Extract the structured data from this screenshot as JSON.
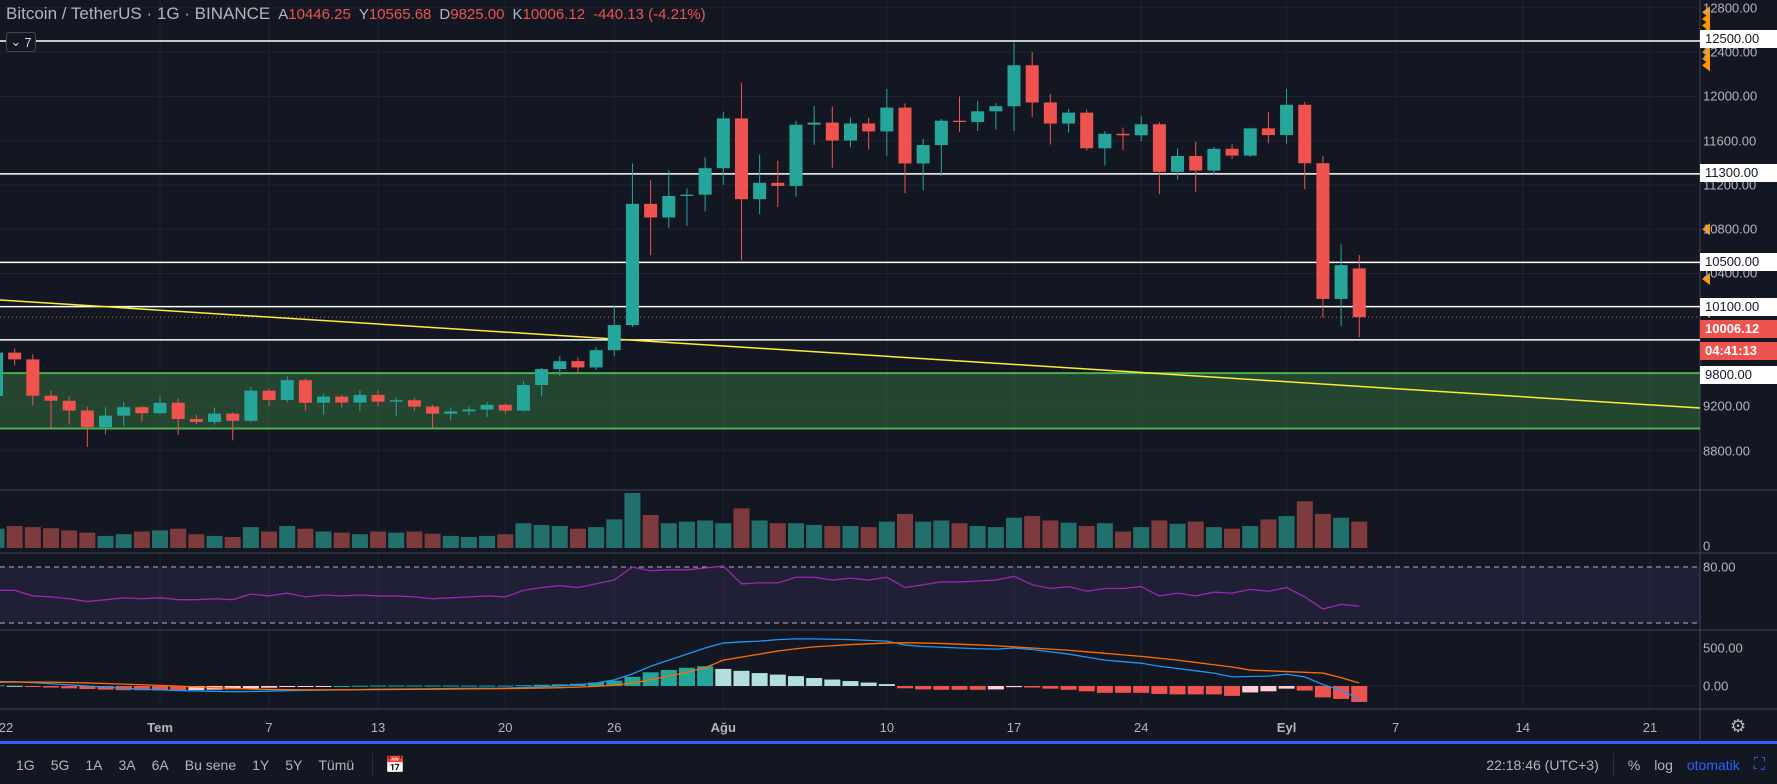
{
  "header": {
    "symbol": "Bitcoin / TetherUS · 1G · BINANCE",
    "open_label": "A",
    "open": "10446.25",
    "high_label": "Y",
    "high": "10565.68",
    "low_label": "D",
    "low": "9825.00",
    "close_label": "K",
    "close": "10006.12",
    "change": "-440.13 (-4.21%)",
    "legend_count": "7"
  },
  "colors": {
    "bg": "#131722",
    "up": "#26a69a",
    "down": "#ef5350",
    "rsi": "#9c27b0",
    "macd": "#2196f3",
    "signal": "#ff6d00",
    "zone": "#4caf50",
    "trend": "#ffeb3b"
  },
  "price_axis": {
    "ticks": [
      "12800.00",
      "12400.00",
      "12000.00",
      "11600.00",
      "11200.00",
      "10800.00",
      "10400.00",
      "9200.00",
      "8800.00"
    ],
    "tick_values": [
      12800,
      12400,
      12000,
      11600,
      11200,
      10800,
      10400,
      9200,
      8800
    ],
    "levels": [
      "12500.00",
      "11300.00",
      "10500.00",
      "10100.00",
      "9800.00"
    ],
    "level_values": [
      12500,
      11300,
      10500,
      10100,
      9800
    ],
    "last_price": "10006.12",
    "countdown": "04:41:13",
    "alert_values": [
      12760,
      12700,
      12640,
      12580,
      12520,
      12460,
      12400,
      12340,
      12280,
      11300,
      10800,
      10350,
      10050
    ]
  },
  "zone": {
    "from": 9000,
    "to": 9500
  },
  "volume_axis": {
    "zero": "0"
  },
  "rsi_axis": {
    "upper": "80.00",
    "bands": [
      80,
      20
    ]
  },
  "macd_axis": {
    "t500": "500.00",
    "t0": "0.00"
  },
  "time_axis": [
    {
      "label": "22",
      "day": 0,
      "bold": false
    },
    {
      "label": "Tem",
      "day": 9,
      "bold": true
    },
    {
      "label": "7",
      "day": 15,
      "bold": false
    },
    {
      "label": "13",
      "day": 21,
      "bold": false
    },
    {
      "label": "20",
      "day": 28,
      "bold": false
    },
    {
      "label": "26",
      "day": 34,
      "bold": false
    },
    {
      "label": "Ağu",
      "day": 40,
      "bold": true
    },
    {
      "label": "10",
      "day": 49,
      "bold": false
    },
    {
      "label": "17",
      "day": 56,
      "bold": false
    },
    {
      "label": "24",
      "day": 63,
      "bold": false
    },
    {
      "label": "Eyl",
      "day": 71,
      "bold": true
    },
    {
      "label": "7",
      "day": 77,
      "bold": false
    },
    {
      "label": "14",
      "day": 84,
      "bold": false
    },
    {
      "label": "21",
      "day": 91,
      "bold": false
    }
  ],
  "toolbar": {
    "ranges": [
      "1G",
      "5G",
      "1A",
      "3A",
      "6A",
      "Bu sene",
      "1Y",
      "5Y",
      "Tümü"
    ],
    "time": "22:18:46 (UTC+3)",
    "percent": "%",
    "log": "log",
    "auto": "otomatik"
  },
  "chart_data": {
    "type": "candlestick",
    "title": "Bitcoin / TetherUS · 1G · BINANCE",
    "first_date": "2020-06-22",
    "last_date": "2020-09-05",
    "ylim": [
      8600,
      12900
    ],
    "ohlc": [
      [
        9294,
        9780,
        9282,
        9685
      ],
      [
        9685,
        9722,
        9570,
        9624
      ],
      [
        9624,
        9670,
        9208,
        9296
      ],
      [
        9296,
        9340,
        9005,
        9250
      ],
      [
        9250,
        9290,
        9036,
        9162
      ],
      [
        9162,
        9196,
        8833,
        9012
      ],
      [
        9012,
        9191,
        8948,
        9116
      ],
      [
        9116,
        9236,
        9024,
        9192
      ],
      [
        9192,
        9200,
        9064,
        9138
      ],
      [
        9138,
        9292,
        9126,
        9232
      ],
      [
        9232,
        9272,
        8940,
        9086
      ],
      [
        9086,
        9125,
        9040,
        9059
      ],
      [
        9059,
        9189,
        9035,
        9134
      ],
      [
        9134,
        9145,
        8893,
        9069
      ],
      [
        9069,
        9375,
        9056,
        9342
      ],
      [
        9342,
        9361,
        9203,
        9257
      ],
      [
        9257,
        9470,
        9237,
        9436
      ],
      [
        9436,
        9450,
        9160,
        9232
      ],
      [
        9232,
        9317,
        9125,
        9288
      ],
      [
        9288,
        9305,
        9190,
        9234
      ],
      [
        9234,
        9345,
        9157,
        9303
      ],
      [
        9303,
        9343,
        9200,
        9242
      ],
      [
        9242,
        9279,
        9113,
        9255
      ],
      [
        9255,
        9275,
        9160,
        9197
      ],
      [
        9197,
        9216,
        9005,
        9133
      ],
      [
        9133,
        9187,
        9074,
        9154
      ],
      [
        9154,
        9196,
        9118,
        9171
      ],
      [
        9171,
        9240,
        9105,
        9214
      ],
      [
        9214,
        9224,
        9132,
        9161
      ],
      [
        9161,
        9430,
        9152,
        9392
      ],
      [
        9392,
        9549,
        9290,
        9536
      ],
      [
        9536,
        9655,
        9475,
        9608
      ],
      [
        9608,
        9642,
        9500,
        9551
      ],
      [
        9551,
        9735,
        9529,
        9707
      ],
      [
        9707,
        10111,
        9651,
        9934
      ],
      [
        9934,
        11394,
        9917,
        11029
      ],
      [
        11029,
        11242,
        10565,
        10906
      ],
      [
        10906,
        11335,
        10812,
        11100
      ],
      [
        11100,
        11169,
        10831,
        11112
      ],
      [
        11112,
        11450,
        10960,
        11351
      ],
      [
        11351,
        11861,
        11200,
        11801
      ],
      [
        11801,
        12123,
        10518,
        11071
      ],
      [
        11071,
        11474,
        10936,
        11219
      ],
      [
        11219,
        11418,
        11000,
        11191
      ],
      [
        11191,
        11780,
        11093,
        11744
      ],
      [
        11744,
        11912,
        11562,
        11763
      ],
      [
        11763,
        11909,
        11356,
        11601
      ],
      [
        11601,
        11808,
        11540,
        11755
      ],
      [
        11755,
        11806,
        11520,
        11683
      ],
      [
        11683,
        12067,
        11461,
        11898
      ],
      [
        11898,
        11935,
        11125,
        11394
      ],
      [
        11394,
        11617,
        11150,
        11560
      ],
      [
        11560,
        11797,
        11280,
        11780
      ],
      [
        11780,
        12000,
        11680,
        11768
      ],
      [
        11768,
        11960,
        11686,
        11865
      ],
      [
        11865,
        11940,
        11700,
        11911
      ],
      [
        11911,
        12486,
        11687,
        12281
      ],
      [
        12281,
        12400,
        11813,
        11945
      ],
      [
        11945,
        12020,
        11565,
        11754
      ],
      [
        11754,
        11887,
        11672,
        11853
      ],
      [
        11853,
        11880,
        11510,
        11531
      ],
      [
        11531,
        11686,
        11376,
        11662
      ],
      [
        11662,
        11718,
        11514,
        11648
      ],
      [
        11648,
        11824,
        11595,
        11748
      ],
      [
        11748,
        11767,
        11117,
        11318
      ],
      [
        11318,
        11530,
        11250,
        11461
      ],
      [
        11461,
        11590,
        11135,
        11330
      ],
      [
        11330,
        11545,
        11288,
        11526
      ],
      [
        11526,
        11570,
        11433,
        11465
      ],
      [
        11465,
        11718,
        11455,
        11711
      ],
      [
        11711,
        11860,
        11578,
        11650
      ],
      [
        11650,
        12067,
        11570,
        11924
      ],
      [
        11924,
        11950,
        11160,
        11396
      ],
      [
        11396,
        11462,
        10000,
        10170
      ],
      [
        10170,
        10663,
        9925,
        10476
      ],
      [
        10446,
        10566,
        9825,
        10006
      ]
    ],
    "volume_relative": [
      35,
      40,
      38,
      36,
      32,
      28,
      22,
      25,
      30,
      32,
      35,
      25,
      22,
      20,
      38,
      30,
      40,
      35,
      30,
      28,
      25,
      30,
      28,
      30,
      26,
      22,
      20,
      22,
      25,
      45,
      42,
      40,
      35,
      38,
      52,
      100,
      60,
      45,
      48,
      50,
      45,
      72,
      50,
      45,
      45,
      42,
      40,
      40,
      38,
      48,
      62,
      48,
      50,
      45,
      40,
      38,
      55,
      58,
      50,
      46,
      40,
      45,
      30,
      38,
      50,
      44,
      48,
      38,
      35,
      40,
      52,
      58,
      85,
      62,
      55,
      48
    ],
    "rsi": [
      55,
      55,
      49,
      48,
      46,
      43,
      45,
      47,
      46,
      47,
      45,
      45,
      46,
      45,
      51,
      49,
      52,
      48,
      50,
      49,
      50,
      49,
      49,
      48,
      46,
      47,
      48,
      49,
      48,
      55,
      58,
      60,
      58,
      62,
      66,
      80,
      76,
      77,
      77,
      79,
      81,
      62,
      63,
      63,
      69,
      69,
      66,
      68,
      66,
      69,
      58,
      61,
      64,
      64,
      65,
      66,
      70,
      61,
      57,
      59,
      54,
      57,
      57,
      59,
      49,
      52,
      49,
      53,
      52,
      56,
      54,
      58,
      48,
      35,
      40,
      38
    ],
    "macd": [
      60,
      55,
      45,
      30,
      15,
      0,
      -15,
      -30,
      -40,
      -50,
      -60,
      -65,
      -70,
      -75,
      -72,
      -68,
      -62,
      -58,
      -54,
      -50,
      -46,
      -42,
      -40,
      -38,
      -36,
      -34,
      -32,
      -30,
      -28,
      -20,
      -10,
      0,
      15,
      40,
      80,
      160,
      260,
      340,
      420,
      500,
      565,
      580,
      590,
      610,
      620,
      620,
      615,
      610,
      600,
      590,
      540,
      520,
      510,
      500,
      490,
      485,
      500,
      480,
      450,
      420,
      380,
      340,
      320,
      300,
      260,
      230,
      200,
      170,
      120,
      125,
      130,
      155,
      120,
      20,
      -60,
      -170
    ],
    "signal": [
      50,
      52,
      52,
      50,
      46,
      40,
      33,
      25,
      16,
      8,
      -2,
      -12,
      -22,
      -32,
      -40,
      -45,
      -48,
      -50,
      -50,
      -50,
      -49,
      -48,
      -46,
      -44,
      -42,
      -40,
      -38,
      -36,
      -34,
      -31,
      -27,
      -22,
      -15,
      -5,
      10,
      40,
      80,
      130,
      180,
      240,
      340,
      380,
      420,
      460,
      490,
      515,
      530,
      545,
      555,
      565,
      570,
      565,
      560,
      550,
      540,
      530,
      515,
      500,
      485,
      470,
      450,
      430,
      410,
      390,
      365,
      340,
      310,
      280,
      250,
      210,
      200,
      190,
      180,
      170,
      110,
      40
    ]
  }
}
